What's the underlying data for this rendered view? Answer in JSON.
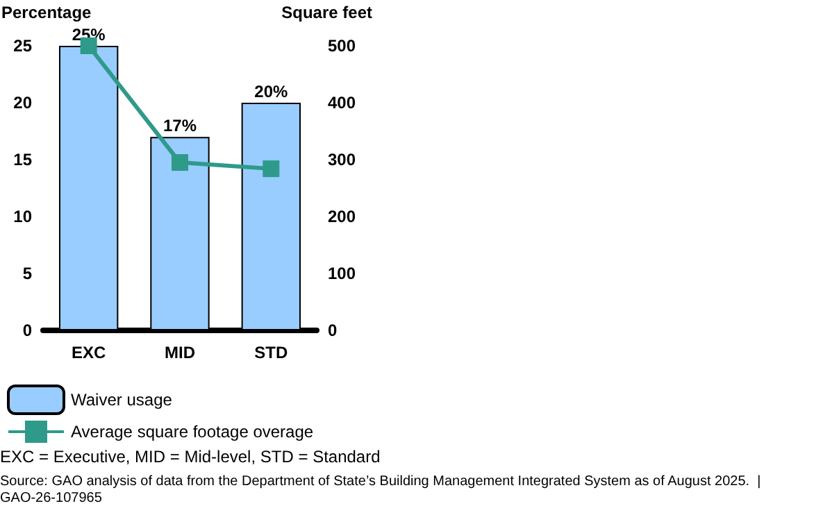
{
  "chart_data": {
    "type": "bar",
    "categories": [
      "EXC",
      "MID",
      "STD"
    ],
    "ylabel": "Percentage",
    "y2label": "Square feet",
    "ylim": [
      0,
      25
    ],
    "yticks": [
      0,
      5,
      10,
      15,
      20,
      25
    ],
    "y2lim": [
      0,
      500
    ],
    "y2ticks": [
      0,
      100,
      200,
      300,
      400,
      500
    ],
    "series": [
      {
        "name": "Waiver usage",
        "color": "#99ccff",
        "values": [
          25,
          17,
          20
        ],
        "value_labels": [
          "25%",
          "17%",
          "20%"
        ]
      },
      {
        "name": "Average square footage overage",
        "type": "line",
        "axis": "y2",
        "color": "#2e9a8a",
        "values": [
          500,
          295,
          284
        ],
        "marker": "square"
      }
    ],
    "legend": "bottom left",
    "grid": false,
    "annotations": [
      "EXC = Executive, MID = Mid-level, STD = Standard",
      "Source: GAO analysis of data from the Department of State’s Building Management Integrated System as of August 2025.  |  GAO-26-107965"
    ]
  }
}
